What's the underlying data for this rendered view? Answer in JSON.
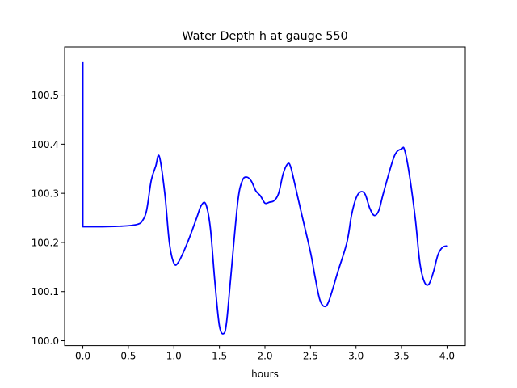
{
  "chart_data": {
    "type": "line",
    "title": "Water Depth h at gauge 550",
    "xlabel": "hours",
    "ylabel": "",
    "xlim": [
      -0.2,
      4.2
    ],
    "ylim": [
      99.99,
      100.598
    ],
    "xticks": [
      0.0,
      0.5,
      1.0,
      1.5,
      2.0,
      2.5,
      3.0,
      3.5,
      4.0
    ],
    "xtick_labels": [
      "0.0",
      "0.5",
      "1.0",
      "1.5",
      "2.0",
      "2.5",
      "3.0",
      "3.5",
      "4.0"
    ],
    "yticks": [
      100.0,
      100.1,
      100.2,
      100.3,
      100.4,
      100.5
    ],
    "ytick_labels": [
      "100.0",
      "100.1",
      "100.2",
      "100.3",
      "100.4",
      "100.5"
    ],
    "grid": false,
    "series": [
      {
        "color": "#0000ff",
        "x": [
          0.0,
          0.0,
          0.0,
          0.2,
          0.4,
          0.5,
          0.6,
          0.65,
          0.7,
          0.75,
          0.8,
          0.84,
          0.9,
          0.95,
          1.0,
          1.05,
          1.15,
          1.25,
          1.3,
          1.35,
          1.4,
          1.45,
          1.5,
          1.55,
          1.58,
          1.62,
          1.7,
          1.75,
          1.8,
          1.85,
          1.9,
          1.95,
          2.0,
          2.05,
          2.1,
          2.15,
          2.2,
          2.25,
          2.28,
          2.32,
          2.4,
          2.5,
          2.55,
          2.6,
          2.65,
          2.7,
          2.8,
          2.9,
          2.95,
          3.0,
          3.05,
          3.1,
          3.15,
          3.2,
          3.25,
          3.3,
          3.4,
          3.45,
          3.5,
          3.53,
          3.58,
          3.65,
          3.7,
          3.75,
          3.8,
          3.85,
          3.9,
          3.95,
          4.0
        ],
        "y": [
          100.567,
          100.232,
          100.232,
          100.232,
          100.233,
          100.234,
          100.237,
          100.243,
          100.265,
          100.325,
          100.355,
          100.375,
          100.3,
          100.2,
          100.158,
          100.16,
          100.2,
          100.25,
          100.275,
          100.278,
          100.23,
          100.12,
          100.03,
          100.015,
          100.04,
          100.12,
          100.28,
          100.325,
          100.333,
          100.325,
          100.305,
          100.295,
          100.28,
          100.282,
          100.285,
          100.3,
          100.34,
          100.36,
          100.355,
          100.325,
          100.26,
          100.18,
          100.13,
          100.085,
          100.07,
          100.08,
          100.14,
          100.2,
          100.255,
          100.29,
          100.303,
          100.298,
          100.27,
          100.255,
          100.265,
          100.3,
          100.365,
          100.385,
          100.39,
          100.39,
          100.345,
          100.25,
          100.16,
          100.12,
          100.115,
          100.14,
          100.175,
          100.19,
          100.193
        ]
      }
    ]
  }
}
